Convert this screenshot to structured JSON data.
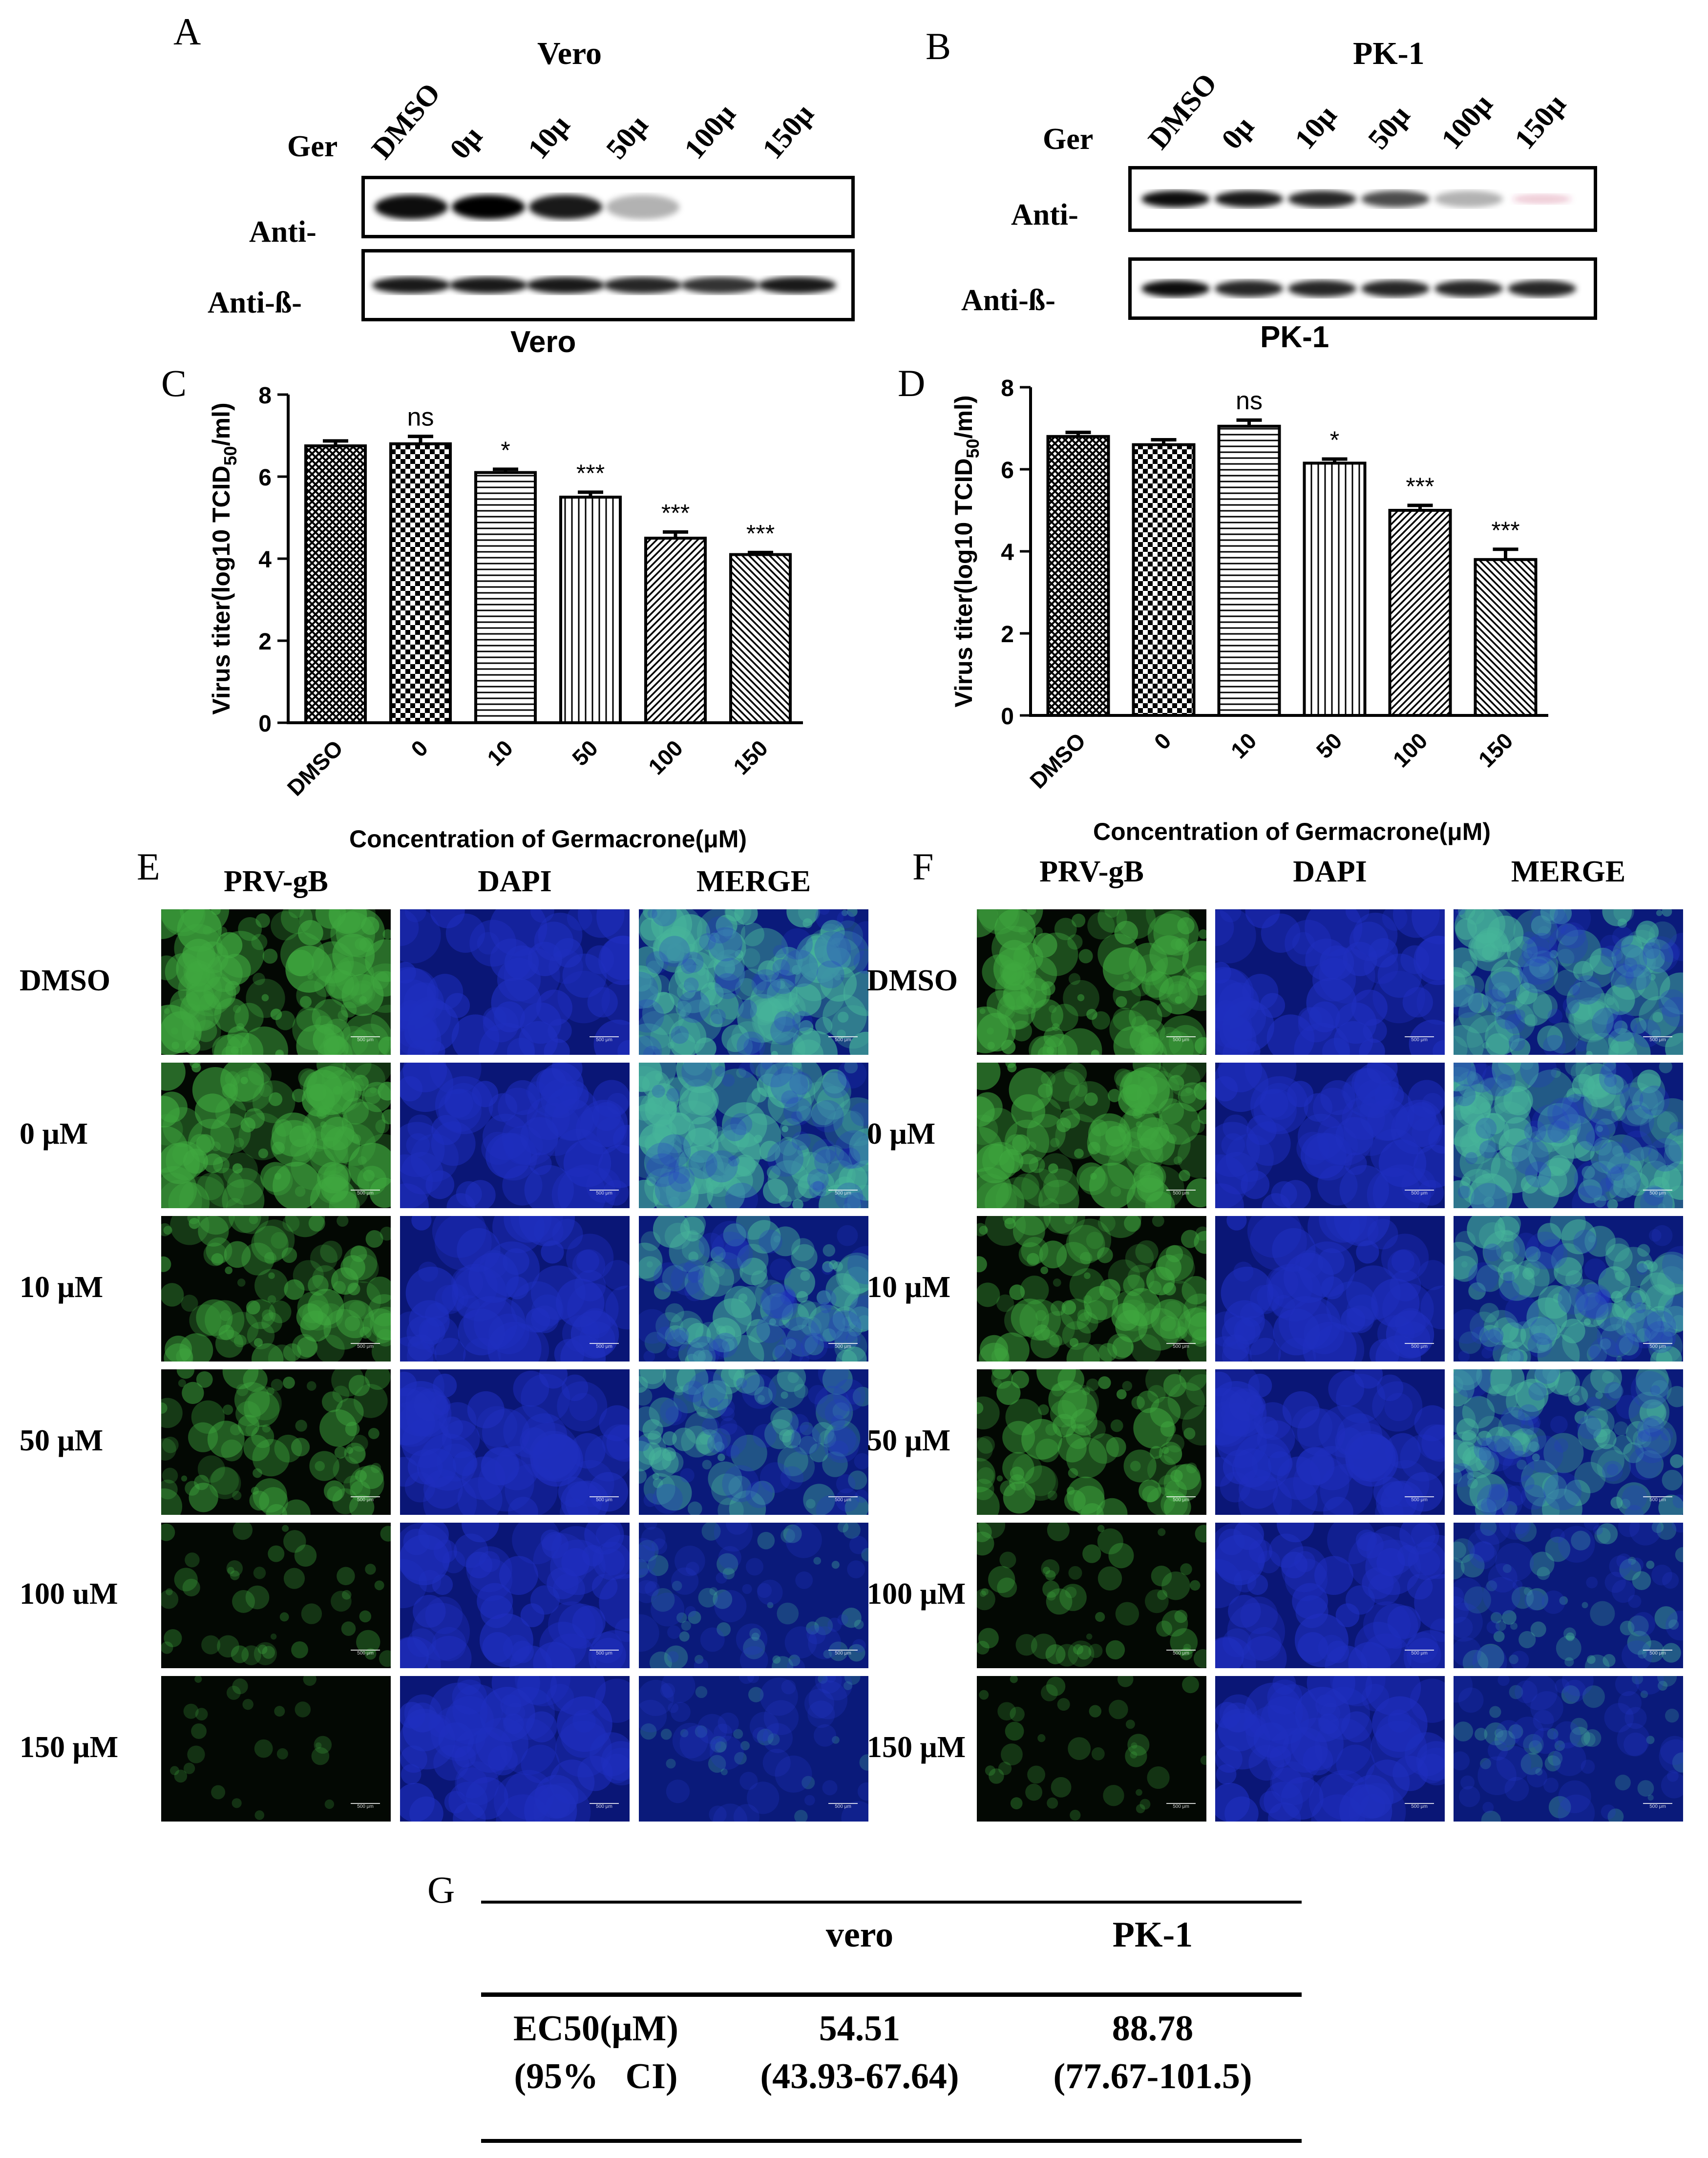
{
  "panels": {
    "A": "A",
    "B": "B",
    "C": "C",
    "D": "D",
    "E": "E",
    "F": "F",
    "G": "G"
  },
  "blots": {
    "vero": {
      "title": "Vero",
      "ger_label": "Ger",
      "lanes": [
        "DMSO",
        "0µ",
        "10µ",
        "50µ",
        "100µ",
        "150µ"
      ],
      "row_labels": [
        "Anti-",
        "Anti-ß-"
      ],
      "caption": "Vero",
      "band_intensity": [
        0.95,
        1.0,
        0.9,
        0.3,
        0.0,
        0.0
      ]
    },
    "pk1": {
      "title": "PK-1",
      "ger_label": "Ger",
      "lanes": [
        "DMSO",
        "0µ",
        "10µ",
        "50µ",
        "100µ",
        "150µ"
      ],
      "row_labels": [
        "Anti-",
        "Anti-ß-"
      ],
      "caption": "PK-1",
      "band_intensity": [
        0.95,
        0.9,
        0.85,
        0.7,
        0.3,
        0.08
      ]
    }
  },
  "chart_data": [
    {
      "type": "bar",
      "panel": "C",
      "categories": [
        "DMSO",
        "0",
        "10",
        "50",
        "100",
        "150"
      ],
      "values": [
        6.75,
        6.8,
        6.1,
        5.5,
        4.5,
        4.1
      ],
      "errors": [
        0.12,
        0.18,
        0.08,
        0.12,
        0.15,
        0.05
      ],
      "significance": [
        "",
        "ns",
        "*",
        "***",
        "***",
        "***"
      ],
      "patterns": [
        "crosshatch",
        "checker",
        "hlines",
        "vlines",
        "diag-right",
        "diag-left"
      ],
      "title": "",
      "xlabel": "Concentration of Germacrone(μM)",
      "ylabel": "Virus titer(log10 TCID50/ml)",
      "ylim": [
        0,
        8
      ],
      "yticks": [
        0,
        2,
        4,
        6,
        8
      ]
    },
    {
      "type": "bar",
      "panel": "D",
      "categories": [
        "DMSO",
        "0",
        "10",
        "50",
        "100",
        "150"
      ],
      "values": [
        6.8,
        6.6,
        7.05,
        6.15,
        5.0,
        3.8
      ],
      "errors": [
        0.1,
        0.12,
        0.15,
        0.1,
        0.12,
        0.25
      ],
      "significance": [
        "",
        "",
        "ns",
        "*",
        "***",
        "***"
      ],
      "patterns": [
        "crosshatch",
        "checker",
        "hlines",
        "vlines",
        "diag-right",
        "diag-left"
      ],
      "title": "",
      "xlabel": "Concentration of Germacrone(μM)",
      "ylabel": "Virus titer(log10 TCID50/ml)",
      "ylim": [
        0,
        8
      ],
      "yticks": [
        0,
        2,
        4,
        6,
        8
      ]
    }
  ],
  "if_panels": {
    "headers": [
      "PRV-gB",
      "DAPI",
      "MERGE"
    ],
    "E_rows": [
      "DMSO",
      "0 μM",
      "10 μM",
      "50 μM",
      "100 uM",
      "150 μM"
    ],
    "F_rows": [
      "DMSO",
      "0 μM",
      "10 μM",
      "50 μM",
      "100 μM",
      "150 μM"
    ],
    "E_green_level": [
      0.95,
      0.9,
      0.7,
      0.6,
      0.25,
      0.08
    ],
    "F_green_level": [
      0.85,
      0.85,
      0.75,
      0.7,
      0.35,
      0.2
    ],
    "scale_bar": "500 μm",
    "colors": {
      "green": "#3fa83f",
      "blue": "#1f2fbf",
      "dark": "#030803"
    }
  },
  "table": {
    "col_headers": [
      "",
      "vero",
      "PK-1"
    ],
    "row_label_1": "EC50(μM)",
    "row_label_2": "(95%   CI)",
    "vero_value": "54.51",
    "vero_ci": "(43.93-67.64)",
    "pk1_value": "88.78",
    "pk1_ci": "(77.67-101.5)"
  }
}
